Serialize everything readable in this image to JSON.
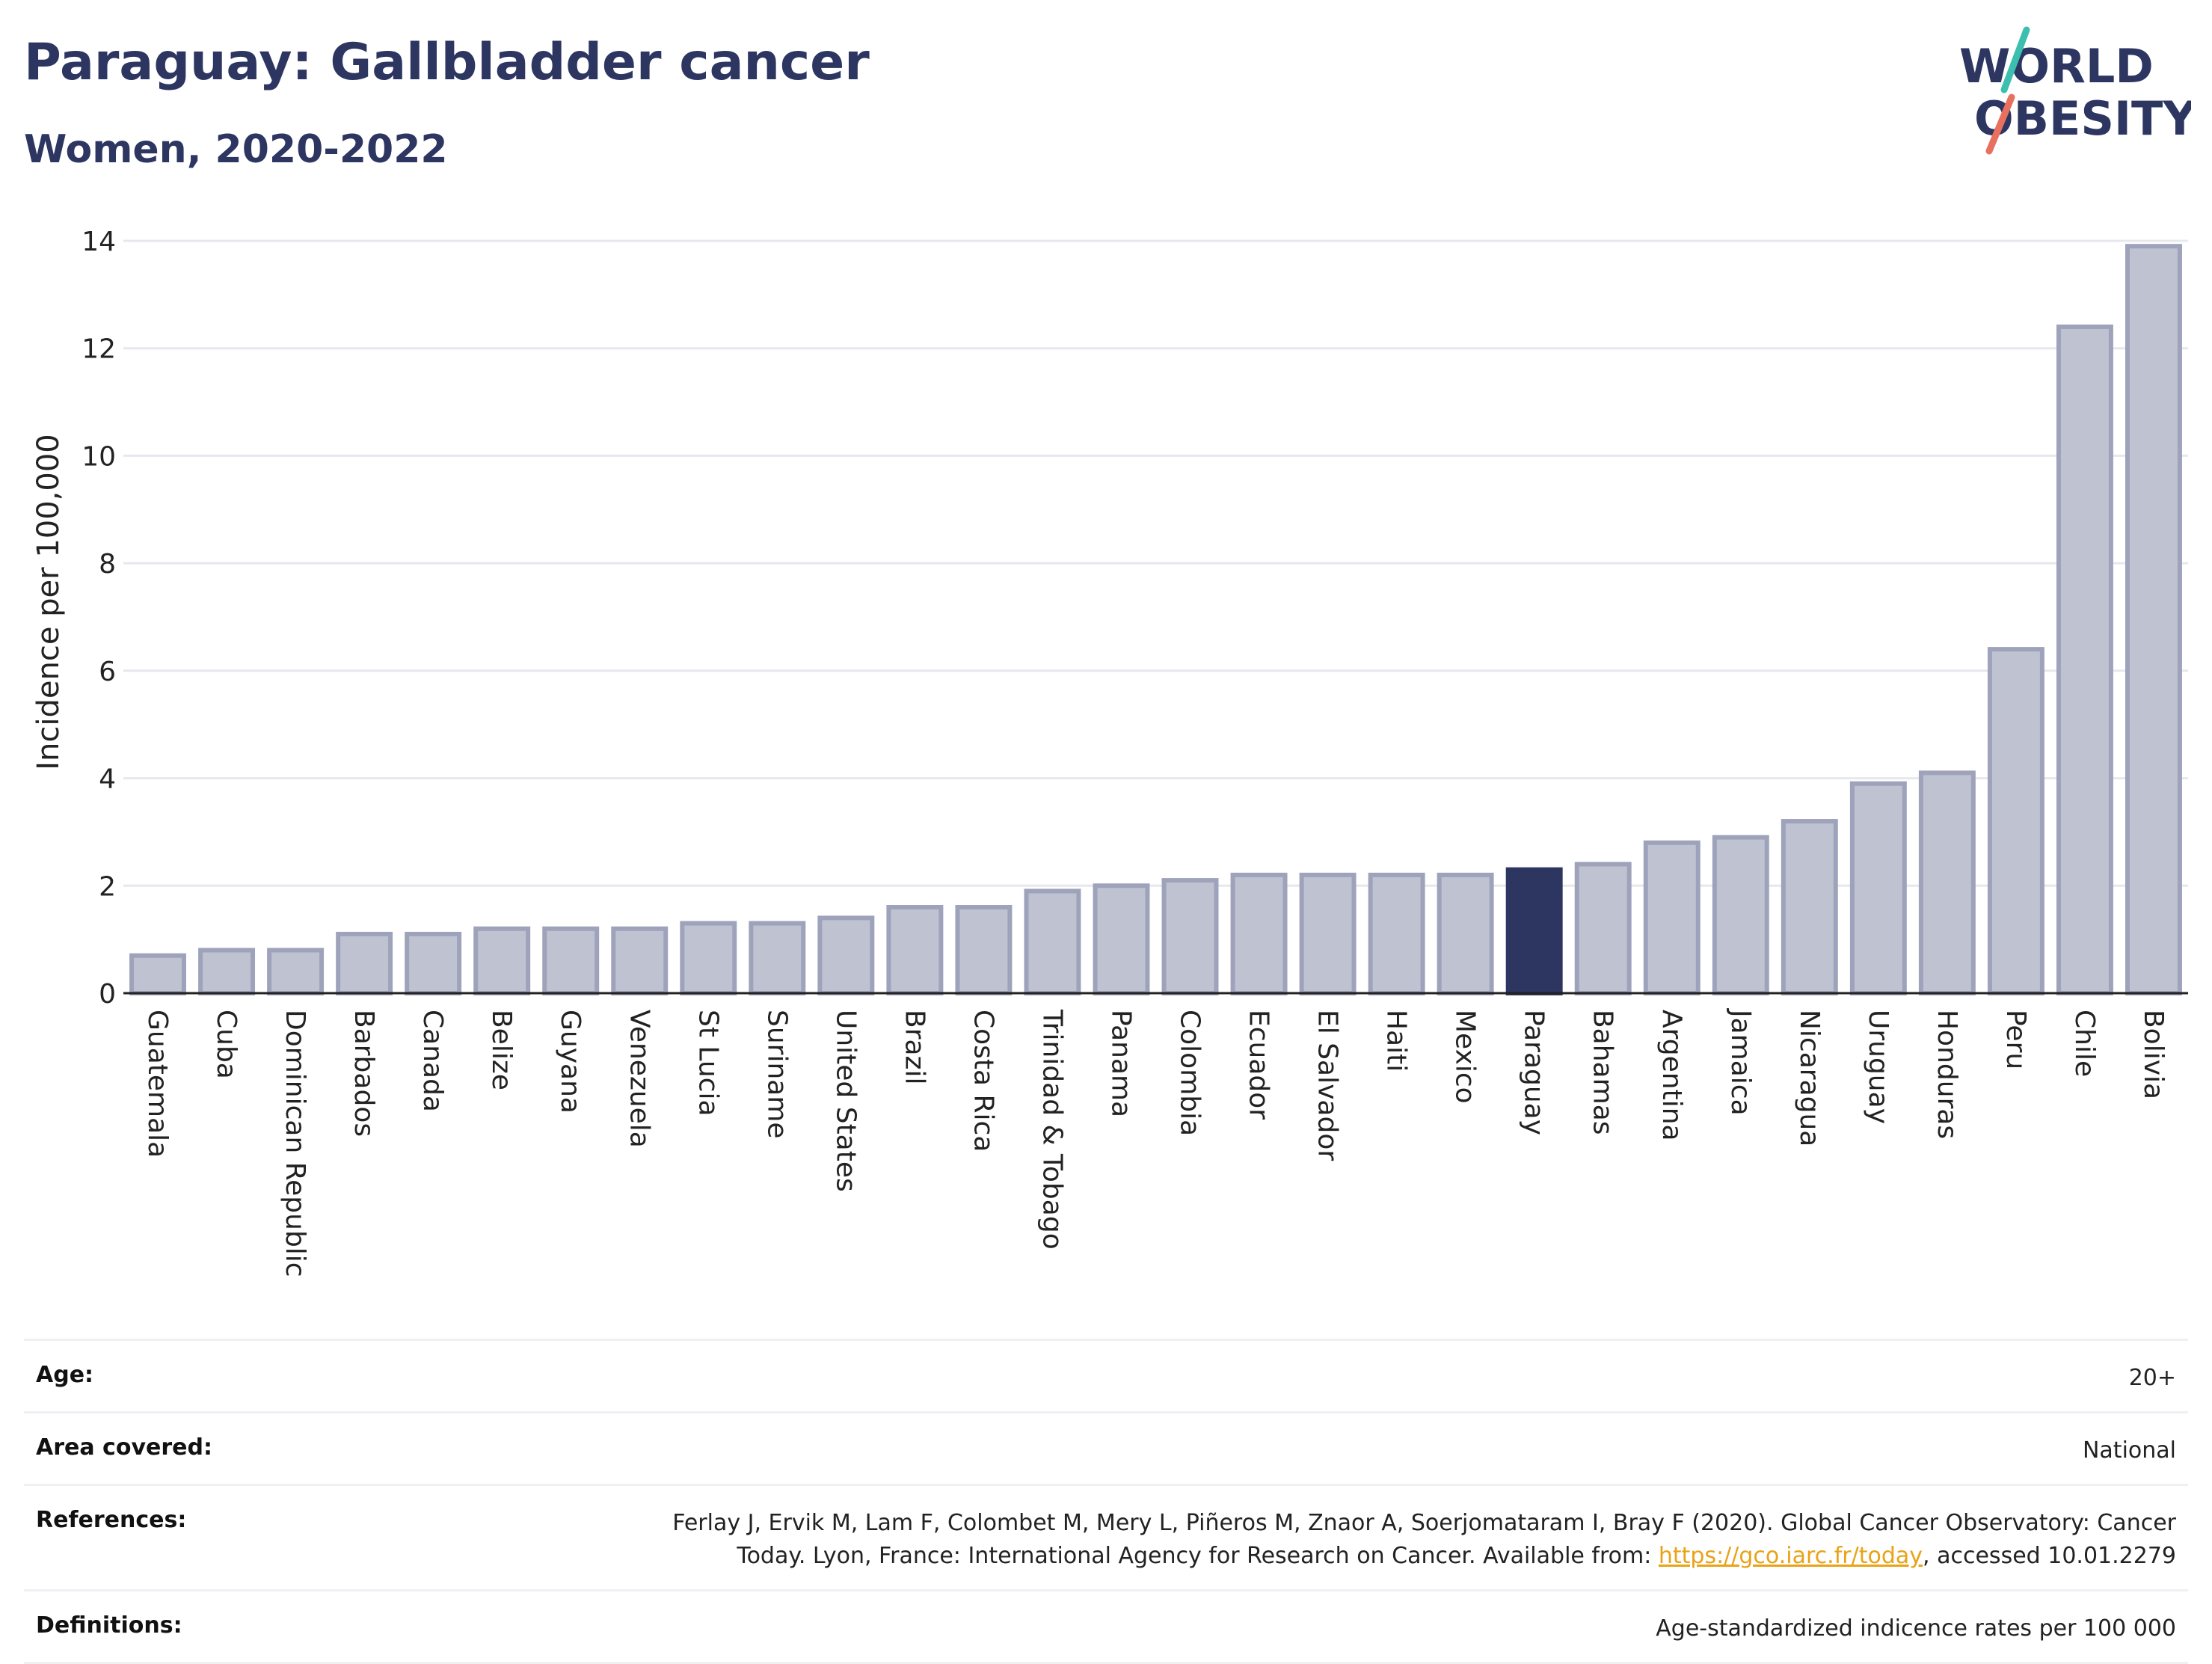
{
  "header": {
    "title": "Paraguay: Gallbladder cancer",
    "subtitle": "Women, 2020-2022",
    "logo_line1": "WORLD",
    "logo_line2": "OBESITY"
  },
  "colors": {
    "bar": "#bfc2d0",
    "bar_stroke": "#9ea3bb",
    "highlight": "#2d3561",
    "grid": "#e6e8ee",
    "logo_teal": "#3dbfb0",
    "logo_coral": "#e8705f"
  },
  "chart_data": {
    "type": "bar",
    "title": "Paraguay: Gallbladder cancer",
    "subtitle": "Women, 2020-2022",
    "ylabel": "Incidence per 100,000",
    "xlabel": "",
    "ylim": [
      0,
      14
    ],
    "yticks": [
      0,
      2,
      4,
      6,
      8,
      10,
      12,
      14
    ],
    "grid": true,
    "highlight": "Paraguay",
    "categories": [
      "Guatemala",
      "Cuba",
      "Dominican Republic",
      "Barbados",
      "Canada",
      "Belize",
      "Guyana",
      "Venezuela",
      "St Lucia",
      "Suriname",
      "United States",
      "Brazil",
      "Costa Rica",
      "Trinidad & Tobago",
      "Panama",
      "Colombia",
      "Ecuador",
      "El Salvador",
      "Haiti",
      "Mexico",
      "Paraguay",
      "Bahamas",
      "Argentina",
      "Jamaica",
      "Nicaragua",
      "Uruguay",
      "Honduras",
      "Peru",
      "Chile",
      "Bolivia"
    ],
    "values": [
      0.7,
      0.8,
      0.8,
      1.1,
      1.1,
      1.2,
      1.2,
      1.2,
      1.3,
      1.3,
      1.4,
      1.6,
      1.6,
      1.9,
      2.0,
      2.1,
      2.2,
      2.2,
      2.2,
      2.2,
      2.3,
      2.4,
      2.8,
      2.9,
      3.2,
      3.9,
      4.1,
      6.4,
      12.4,
      13.9
    ]
  },
  "info": {
    "age_label": "Age:",
    "age_value": "20+",
    "area_label": "Area covered:",
    "area_value": "National",
    "references_label": "References:",
    "references_line1": "Ferlay J, Ervik M, Lam F, Colombet M, Mery L, Piñeros M, Znaor A, Soerjomataram I, Bray F (2020). Global Cancer Observatory: Cancer",
    "references_line2_pre": "Today. Lyon, France: International Agency for Research on Cancer. Available from: ",
    "references_link": "https://gco.iarc.fr/today",
    "references_line2_post": ", accessed 10.01.2279",
    "definitions_label": "Definitions:",
    "definitions_value": "Age-standardized indicence rates per 100 000"
  }
}
